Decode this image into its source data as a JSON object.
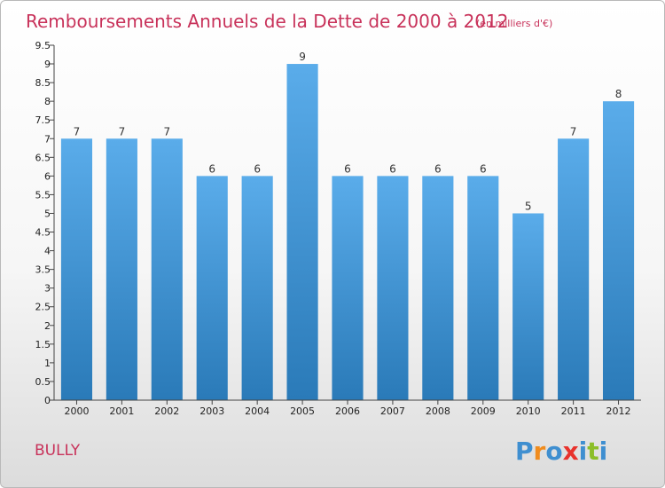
{
  "chart_data": {
    "type": "bar",
    "title": "Remboursements Annuels de la Dette de 2000 à 2012",
    "subtitle": "(en milliers d'€)",
    "categories": [
      "2000",
      "2001",
      "2002",
      "2003",
      "2004",
      "2005",
      "2006",
      "2007",
      "2008",
      "2009",
      "2010",
      "2011",
      "2012"
    ],
    "values": [
      7,
      7,
      7,
      6,
      6,
      9,
      6,
      6,
      6,
      6,
      5,
      7,
      8
    ],
    "y_ticks": [
      "0",
      "0.5",
      "1",
      "1.5",
      "2",
      "2.5",
      "3",
      "3.5",
      "4",
      "4.5",
      "5",
      "5.5",
      "6",
      "6.5",
      "7",
      "7.5",
      "8",
      "8.5",
      "9",
      "9.5"
    ],
    "ylim": [
      0,
      9.5
    ],
    "grid": false,
    "bar_color_top": "#5aacea",
    "bar_color_bottom": "#2a7ab8"
  },
  "commune": "BULLY",
  "logo": {
    "letters": [
      "P",
      "r",
      "o",
      "x",
      "i",
      "t",
      "i"
    ],
    "colors": [
      "#3f8fd0",
      "#f08c1e",
      "#3f8fd0",
      "#e8322c",
      "#3f8fd0",
      "#8cbe28",
      "#3f8fd0"
    ]
  }
}
